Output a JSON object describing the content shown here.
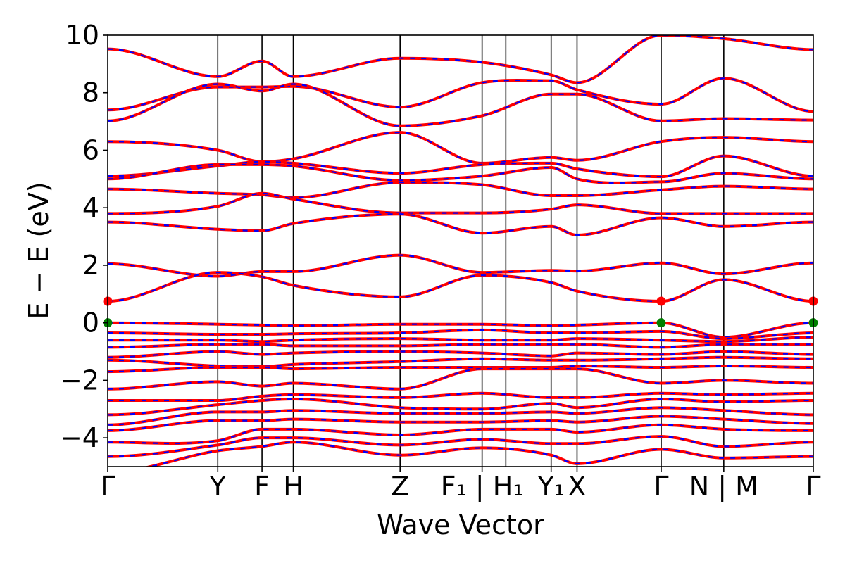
{
  "chart_data": {
    "type": "line",
    "title": "",
    "xlabel": "Wave Vector",
    "ylabel": "E − E₟ (eV)",
    "ylim": [
      -5,
      10
    ],
    "yticks": [
      -4,
      -2,
      0,
      2,
      4,
      6,
      8,
      10
    ],
    "ytick_labels": [
      "−4",
      "−2",
      "0",
      "2",
      "4",
      "6",
      "8",
      "10"
    ],
    "xlim": [
      0,
      6.54
    ],
    "kpoints": [
      {
        "label": "Γ",
        "x": 0.0
      },
      {
        "label": "Y",
        "x": 1.02
      },
      {
        "label": "F",
        "x": 1.43
      },
      {
        "label": "H",
        "x": 1.72
      },
      {
        "label": "Z",
        "x": 2.71
      },
      {
        "label": "F₁ | H₁",
        "x": 3.47
      },
      {
        "label": "Y₁",
        "x": 4.11
      },
      {
        "label": "X",
        "x": 4.35
      },
      {
        "label": "Γ",
        "x": 5.13
      },
      {
        "label": "N | M",
        "x": 5.71
      },
      {
        "label": "Γ",
        "x": 6.54
      }
    ],
    "path_breaks": [
      3.69,
      5.71
    ],
    "grid": false,
    "series_styles": [
      {
        "color": "#ff0000",
        "style": "solid"
      },
      {
        "color": "#0000ff",
        "style": "dashed"
      }
    ],
    "markers": [
      {
        "x": 0.0,
        "y": 0.75,
        "color": "#ff0000"
      },
      {
        "x": 0.0,
        "y": 0.0,
        "color": "#008000"
      },
      {
        "x": 5.13,
        "y": 0.75,
        "color": "#ff0000"
      },
      {
        "x": 5.13,
        "y": 0.0,
        "color": "#008000"
      },
      {
        "x": 6.54,
        "y": 0.75,
        "color": "#ff0000"
      },
      {
        "x": 6.54,
        "y": 0.0,
        "color": "#008000"
      }
    ],
    "bands_at_kpoints": [
      [
        9.52,
        8.56,
        9.1,
        8.56,
        9.2,
        9.06,
        8.62,
        8.35,
        10.0,
        9.88,
        9.5
      ],
      [
        7.4,
        8.2,
        8.2,
        8.22,
        7.5,
        8.35,
        8.42,
        8.1,
        7.6,
        8.5,
        7.35
      ],
      [
        7.02,
        8.3,
        8.06,
        8.3,
        6.85,
        7.2,
        7.95,
        7.95,
        7.02,
        7.1,
        7.05
      ],
      [
        6.3,
        6.0,
        5.6,
        5.7,
        6.62,
        5.55,
        5.75,
        5.65,
        6.3,
        6.45,
        6.3
      ],
      [
        5.1,
        5.45,
        5.6,
        5.55,
        5.2,
        5.5,
        5.55,
        5.35,
        5.08,
        5.8,
        5.1
      ],
      [
        5.0,
        5.5,
        5.5,
        5.45,
        4.95,
        5.1,
        5.4,
        5.0,
        4.9,
        5.2,
        5.0
      ],
      [
        4.65,
        4.5,
        4.45,
        4.35,
        4.88,
        4.8,
        4.42,
        4.42,
        4.62,
        4.75,
        4.65
      ],
      [
        3.8,
        4.05,
        4.5,
        4.3,
        3.82,
        3.82,
        3.95,
        4.1,
        3.8,
        3.8,
        3.8
      ],
      [
        3.5,
        3.25,
        3.2,
        3.45,
        3.78,
        3.12,
        3.35,
        3.05,
        3.65,
        3.35,
        3.5
      ],
      [
        2.05,
        1.62,
        1.78,
        1.78,
        2.35,
        1.75,
        1.82,
        1.8,
        2.08,
        1.7,
        2.08
      ],
      [
        0.75,
        1.75,
        1.6,
        1.3,
        0.9,
        1.65,
        1.4,
        1.1,
        0.75,
        1.5,
        0.75
      ],
      [
        0.0,
        -0.05,
        -0.08,
        -0.1,
        -0.05,
        -0.05,
        -0.1,
        -0.08,
        0.0,
        -0.5,
        0.0
      ],
      [
        -0.35,
        -0.4,
        -0.4,
        -0.38,
        -0.35,
        -0.25,
        -0.35,
        -0.35,
        -0.3,
        -0.55,
        -0.35
      ],
      [
        -0.6,
        -0.6,
        -0.65,
        -0.6,
        -0.55,
        -0.6,
        -0.6,
        -0.55,
        -0.6,
        -0.65,
        -0.5
      ],
      [
        -0.85,
        -0.75,
        -0.75,
        -0.8,
        -0.8,
        -0.75,
        -0.75,
        -0.75,
        -0.85,
        -0.75,
        -0.75
      ],
      [
        -1.2,
        -1.0,
        -1.1,
        -1.05,
        -1.0,
        -1.05,
        -1.15,
        -1.05,
        -1.1,
        -1.0,
        -1.1
      ],
      [
        -1.3,
        -1.5,
        -1.52,
        -1.45,
        -1.35,
        -1.25,
        -1.3,
        -1.3,
        -1.25,
        -1.2,
        -1.25
      ],
      [
        -1.7,
        -1.55,
        -1.55,
        -1.6,
        -1.55,
        -1.55,
        -1.55,
        -1.5,
        -1.55,
        -1.5,
        -1.55
      ],
      [
        -2.3,
        -2.05,
        -2.2,
        -2.1,
        -2.3,
        -1.6,
        -1.6,
        -1.6,
        -2.1,
        -2.0,
        -2.1
      ],
      [
        -2.7,
        -2.7,
        -2.55,
        -2.5,
        -2.6,
        -2.45,
        -2.6,
        -2.6,
        -2.45,
        -2.5,
        -2.45
      ],
      [
        -3.2,
        -2.85,
        -2.7,
        -2.65,
        -2.95,
        -3.0,
        -2.8,
        -2.95,
        -2.65,
        -2.75,
        -2.7
      ],
      [
        -3.55,
        -3.1,
        -3.1,
        -3.05,
        -3.15,
        -3.15,
        -3.1,
        -3.15,
        -2.95,
        -3.05,
        -3.2
      ],
      [
        -3.75,
        -3.4,
        -3.4,
        -3.35,
        -3.45,
        -3.45,
        -3.4,
        -3.45,
        -3.25,
        -3.35,
        -3.5
      ],
      [
        -4.15,
        -4.1,
        -3.7,
        -3.7,
        -3.9,
        -3.7,
        -3.7,
        -3.8,
        -3.55,
        -3.7,
        -3.75
      ],
      [
        -4.65,
        -4.25,
        -4.0,
        -4.0,
        -4.25,
        -4.05,
        -4.2,
        -4.2,
        -3.95,
        -4.3,
        -4.15
      ],
      [
        -5.2,
        -4.45,
        -4.3,
        -4.15,
        -4.6,
        -4.35,
        -4.6,
        -4.9,
        -4.4,
        -4.7,
        -4.65
      ]
    ]
  }
}
